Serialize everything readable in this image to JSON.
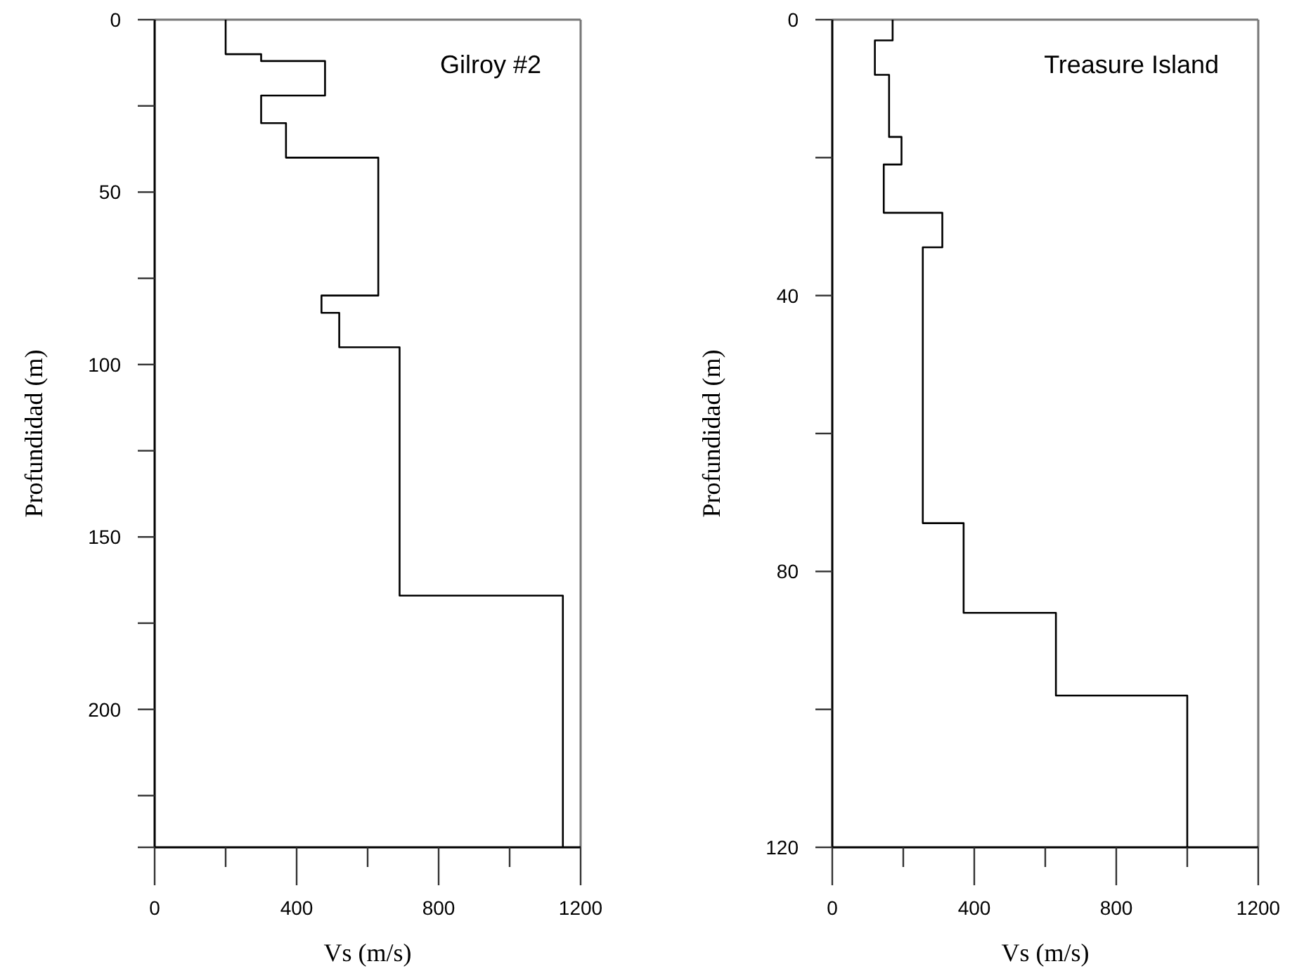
{
  "chart_data": [
    {
      "type": "line",
      "title": "Gilroy #2",
      "xlabel": "Vs (m/s)",
      "ylabel": "Profundidad (m)",
      "xlim": [
        0,
        1200
      ],
      "xticks": [
        0,
        {
          "value": 200,
          "label": null
        },
        400,
        {
          "value": 600,
          "label": null
        },
        800,
        {
          "value": 1000,
          "label": null
        },
        1200
      ],
      "ylim": [
        240,
        0
      ],
      "yticks": [
        0,
        {
          "value": 25,
          "label": null
        },
        50,
        {
          "value": 75,
          "label": null
        },
        100,
        {
          "value": 125,
          "label": null
        },
        150,
        {
          "value": 175,
          "label": null
        },
        200,
        {
          "value": 225,
          "label": null
        },
        {
          "value": 240,
          "label": null
        }
      ],
      "marker": "none",
      "line_style": "solid",
      "series": [
        {
          "color": "#000000",
          "x": [
            200,
            200,
            300,
            300,
            480,
            480,
            300,
            300,
            370,
            370,
            630,
            630,
            470,
            470,
            520,
            520,
            690,
            690,
            1150,
            1150
          ],
          "values": [
            0,
            10,
            10,
            12,
            12,
            22,
            22,
            30,
            30,
            40,
            40,
            80,
            80,
            85,
            85,
            95,
            95,
            167,
            167,
            240
          ]
        }
      ]
    },
    {
      "type": "line",
      "title": "Treasure Island",
      "xlabel": "Vs (m/s)",
      "ylabel": "Profundidad (m)",
      "xlim": [
        0,
        1200
      ],
      "xticks": [
        0,
        {
          "value": 200,
          "label": null
        },
        400,
        {
          "value": 600,
          "label": null
        },
        800,
        {
          "value": 1000,
          "label": null
        },
        1200
      ],
      "ylim": [
        120,
        0
      ],
      "yticks": [
        0,
        {
          "value": 20,
          "label": null
        },
        40,
        {
          "value": 60,
          "label": null
        },
        80,
        {
          "value": 100,
          "label": null
        },
        120
      ],
      "marker": "none",
      "line_style": "solid",
      "series": [
        {
          "color": "#000000",
          "x": [
            170,
            170,
            120,
            120,
            160,
            160,
            195,
            195,
            145,
            145,
            310,
            310,
            255,
            255,
            370,
            370,
            630,
            630,
            1000,
            1000
          ],
          "values": [
            0,
            3,
            3,
            8,
            8,
            17,
            17,
            21,
            21,
            28,
            28,
            33,
            33,
            73,
            73,
            86,
            86,
            98,
            98,
            120
          ]
        }
      ]
    }
  ]
}
